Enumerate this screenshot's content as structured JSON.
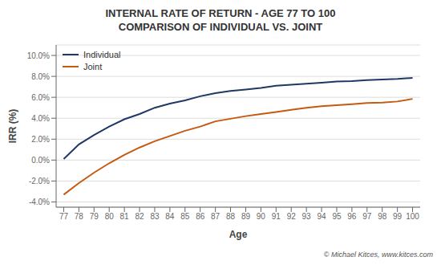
{
  "chart_data": {
    "type": "line",
    "title": "INTERNAL RATE OF RETURN - AGE 77 TO 100",
    "subtitle": "COMPARISON OF INDIVIDUAL VS. JOINT",
    "x_label": "Age",
    "y_label": "IRR (%)",
    "annotations": [
      "© Michael Kitces, www.kitces.com"
    ],
    "x": [
      77,
      78,
      79,
      80,
      81,
      82,
      83,
      84,
      85,
      86,
      87,
      88,
      89,
      90,
      91,
      92,
      93,
      94,
      95,
      96,
      97,
      98,
      99,
      100
    ],
    "series": [
      {
        "name": "Individual",
        "color": "#1F3864",
        "values": [
          0.1,
          1.5,
          2.4,
          3.2,
          3.9,
          4.4,
          5.0,
          5.4,
          5.7,
          6.1,
          6.4,
          6.6,
          6.75,
          6.9,
          7.1,
          7.2,
          7.3,
          7.4,
          7.5,
          7.55,
          7.65,
          7.7,
          7.75,
          7.85
        ]
      },
      {
        "name": "Joint",
        "color": "#C55A11",
        "values": [
          -3.3,
          -2.2,
          -1.2,
          -0.3,
          0.5,
          1.2,
          1.8,
          2.3,
          2.8,
          3.2,
          3.7,
          3.95,
          4.2,
          4.4,
          4.6,
          4.8,
          5.0,
          5.15,
          5.25,
          5.35,
          5.45,
          5.5,
          5.6,
          5.85
        ]
      }
    ],
    "xlim": [
      76.5,
      100.5
    ],
    "xticks": [
      77,
      78,
      79,
      80,
      81,
      82,
      83,
      84,
      85,
      86,
      87,
      88,
      89,
      90,
      91,
      92,
      93,
      94,
      95,
      96,
      97,
      98,
      99,
      100
    ],
    "ylim": [
      -4.5,
      11.0
    ],
    "yticks": [
      {
        "value": -4.0,
        "label": "-4.0%"
      },
      {
        "value": -2.0,
        "label": "-2.0%"
      },
      {
        "value": 0.0,
        "label": "0.0%"
      },
      {
        "value": 2.0,
        "label": "2.0%"
      },
      {
        "value": 4.0,
        "label": "4.0%"
      },
      {
        "value": 6.0,
        "label": "6.0%"
      },
      {
        "value": 8.0,
        "label": "8.0%"
      },
      {
        "value": 10.0,
        "label": "10.0%"
      }
    ],
    "grid": "y",
    "legend": "upper left"
  }
}
